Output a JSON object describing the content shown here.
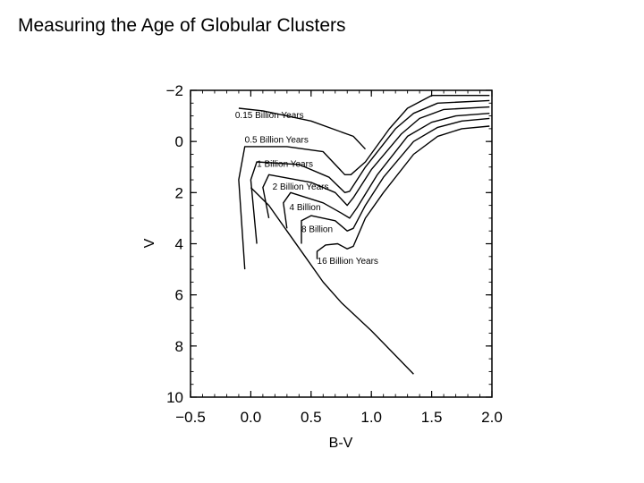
{
  "slide": {
    "title": "Measuring the Age of Globular Clusters"
  },
  "chart_data": {
    "type": "line",
    "xlabel": "B-V",
    "ylabel": "V",
    "xlim": [
      -0.5,
      2.0
    ],
    "ylim": [
      10,
      -2
    ],
    "y_inverted": true,
    "x_ticks": [
      "-0.5",
      "0.0",
      "0.5",
      "1.0",
      "1.5",
      "2.0"
    ],
    "y_ticks": [
      "-2",
      "0",
      "2",
      "4",
      "6",
      "8",
      "10"
    ],
    "grid": false,
    "series": [
      {
        "name": "0.15 Billion Years",
        "points": [
          [
            -0.1,
            -1.3
          ],
          [
            0.1,
            -1.2
          ],
          [
            0.5,
            -0.8
          ],
          [
            0.85,
            -0.2
          ],
          [
            0.95,
            0.3
          ]
        ]
      },
      {
        "name": "0.5 Billion Years",
        "points": [
          [
            -0.05,
            5.0
          ],
          [
            -0.1,
            1.5
          ],
          [
            -0.05,
            0.2
          ],
          [
            0.3,
            0.2
          ],
          [
            0.6,
            0.4
          ],
          [
            0.78,
            1.3
          ],
          [
            0.83,
            1.3
          ],
          [
            0.95,
            0.8
          ],
          [
            1.15,
            -0.5
          ],
          [
            1.3,
            -1.3
          ],
          [
            1.5,
            -1.8
          ],
          [
            1.98,
            -1.8
          ]
        ]
      },
      {
        "name": "1 Billion Years",
        "points": [
          [
            0.05,
            4.0
          ],
          [
            0.0,
            1.5
          ],
          [
            0.05,
            0.8
          ],
          [
            0.4,
            0.9
          ],
          [
            0.65,
            1.4
          ],
          [
            0.78,
            2.0
          ],
          [
            0.82,
            1.95
          ],
          [
            0.95,
            1.0
          ],
          [
            1.2,
            -0.5
          ],
          [
            1.35,
            -1.1
          ],
          [
            1.55,
            -1.5
          ],
          [
            1.98,
            -1.6
          ]
        ]
      },
      {
        "name": "2 Billion Years",
        "points": [
          [
            0.15,
            3.0
          ],
          [
            0.1,
            1.8
          ],
          [
            0.15,
            1.3
          ],
          [
            0.5,
            1.6
          ],
          [
            0.7,
            2.0
          ],
          [
            0.8,
            2.5
          ],
          [
            0.85,
            2.2
          ],
          [
            1.0,
            1.1
          ],
          [
            1.25,
            -0.3
          ],
          [
            1.4,
            -0.9
          ],
          [
            1.6,
            -1.25
          ],
          [
            1.98,
            -1.35
          ]
        ]
      },
      {
        "name": "4 Billion Years",
        "points": [
          [
            0.3,
            3.4
          ],
          [
            0.27,
            2.4
          ],
          [
            0.33,
            2.0
          ],
          [
            0.6,
            2.4
          ],
          [
            0.75,
            2.8
          ],
          [
            0.82,
            3.0
          ],
          [
            0.88,
            2.6
          ],
          [
            1.05,
            1.3
          ],
          [
            1.3,
            -0.2
          ],
          [
            1.5,
            -0.75
          ],
          [
            1.7,
            -1.0
          ],
          [
            1.98,
            -1.1
          ]
        ]
      },
      {
        "name": "8 Billion Years",
        "points": [
          [
            0.42,
            4.0
          ],
          [
            0.42,
            3.1
          ],
          [
            0.5,
            2.9
          ],
          [
            0.7,
            3.1
          ],
          [
            0.8,
            3.5
          ],
          [
            0.85,
            3.4
          ],
          [
            0.95,
            2.5
          ],
          [
            1.1,
            1.4
          ],
          [
            1.35,
            0.0
          ],
          [
            1.55,
            -0.55
          ],
          [
            1.75,
            -0.8
          ],
          [
            1.98,
            -0.9
          ]
        ]
      },
      {
        "name": "16 Billion Years",
        "points": [
          [
            0.55,
            4.6
          ],
          [
            0.55,
            4.3
          ],
          [
            0.62,
            4.05
          ],
          [
            0.72,
            4.0
          ],
          [
            0.8,
            4.2
          ],
          [
            0.85,
            4.1
          ],
          [
            0.95,
            3.0
          ],
          [
            1.1,
            2.0
          ],
          [
            1.35,
            0.5
          ],
          [
            1.55,
            -0.2
          ],
          [
            1.75,
            -0.5
          ],
          [
            1.98,
            -0.6
          ]
        ]
      },
      {
        "name": "",
        "points": [
          [
            0.0,
            1.8
          ],
          [
            0.15,
            2.5
          ],
          [
            0.3,
            3.5
          ],
          [
            0.45,
            4.5
          ],
          [
            0.6,
            5.5
          ],
          [
            0.75,
            6.3
          ],
          [
            1.0,
            7.4
          ],
          [
            1.35,
            9.1
          ]
        ]
      }
    ],
    "labels": [
      "0.15 Billion Years",
      "0.5 Billion Years",
      "1 Billion Years",
      "2 Billion Years",
      "4 Billion",
      "8 Billion",
      "16 Billion Years"
    ]
  }
}
